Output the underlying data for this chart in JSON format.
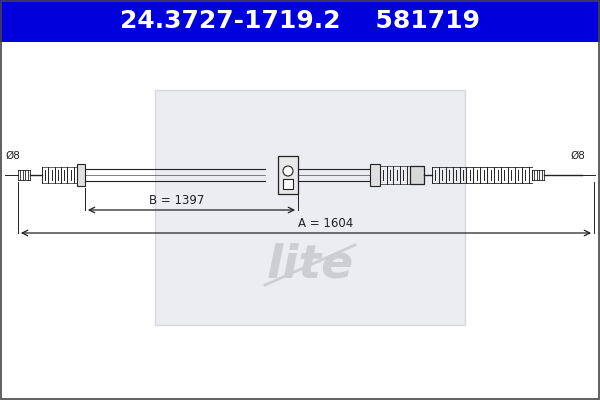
{
  "bg_color": "#ffffff",
  "header_bg": "#0000dd",
  "header_text": "24.3727-1719.2    581719",
  "header_fontsize": 18,
  "header_text_color": "#ffffff",
  "dim_label_B": "B = 1397",
  "dim_label_A": "A = 1604",
  "line_color": "#222222",
  "watermark_color": "#ccced4",
  "watermark_box_color": "#d8dce4",
  "watermark_box_edge": "#b8bec8"
}
